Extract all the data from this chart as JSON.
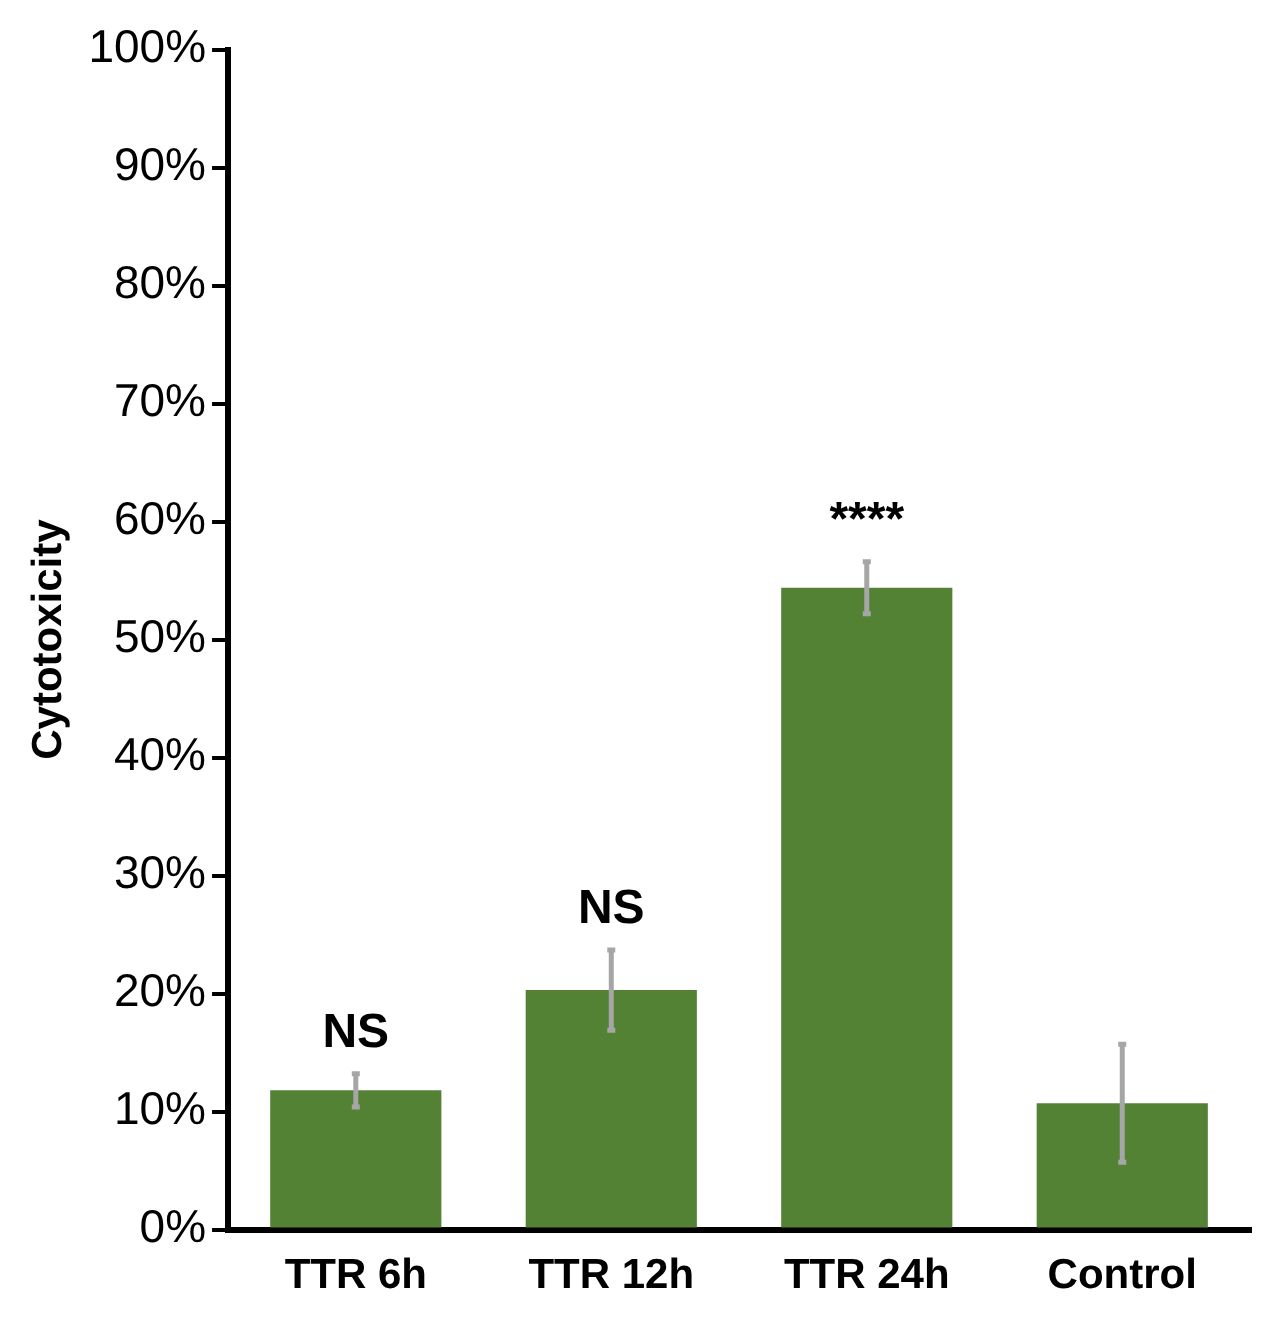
{
  "chart_data": {
    "type": "bar",
    "ylabel": "Cytotoxicity",
    "categories": [
      "TTR 6h",
      "TTR 12h",
      "TTR 24h",
      "Control"
    ],
    "values": [
      11.8,
      20.3,
      54.4,
      10.7
    ],
    "errors": [
      1.4,
      3.4,
      2.2,
      5
    ],
    "color": "#548235",
    "ylim": [
      0,
      100
    ],
    "yticks": [
      {
        "value": 0,
        "label": "0%"
      },
      {
        "value": 10,
        "label": "10%"
      },
      {
        "value": 20,
        "label": "20%"
      },
      {
        "value": 30,
        "label": "30%"
      },
      {
        "value": 40,
        "label": "40%"
      },
      {
        "value": 50,
        "label": "50%"
      },
      {
        "value": 60,
        "label": "60%"
      },
      {
        "value": 70,
        "label": "70%"
      },
      {
        "value": 80,
        "label": "80%"
      },
      {
        "value": 90,
        "label": "90%"
      },
      {
        "value": 100,
        "label": "100%"
      }
    ],
    "grid": false,
    "annotations": [
      {
        "text": "NS",
        "x": "TTR 6h",
        "y": 13.2
      },
      {
        "text": "NS",
        "x": "TTR 12h",
        "y": 23.7
      },
      {
        "text": "****",
        "x": "TTR 24h",
        "y": 56.6
      }
    ]
  }
}
